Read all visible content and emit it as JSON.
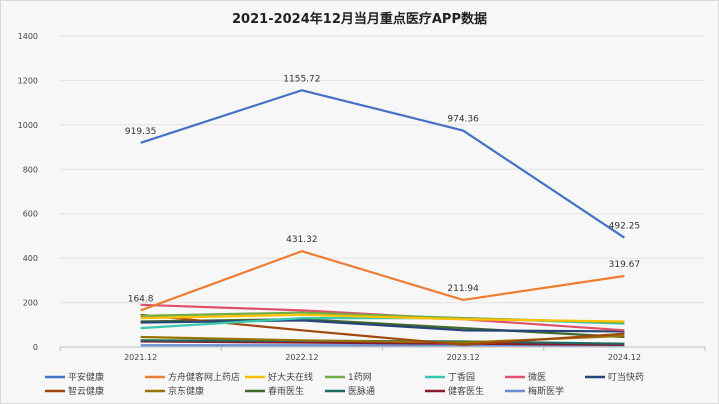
{
  "chart_data": {
    "type": "line",
    "title": "2021-2024年12月当月重点医疗APP数据",
    "xlabel": "",
    "ylabel": "",
    "categories": [
      "2021.12",
      "2022.12",
      "2023.12",
      "2024.12"
    ],
    "ylim": [
      0,
      1400
    ],
    "yticks": [
      0,
      200,
      400,
      600,
      800,
      1000,
      1200,
      1400
    ],
    "grid": true,
    "legend_position": "bottom",
    "series": [
      {
        "name": "平安健康",
        "color": "#4472C4",
        "values": [
          919.35,
          1155.72,
          974.36,
          492.25
        ],
        "labels": [
          "919.35",
          "1155.72",
          "974.36",
          "492.25"
        ]
      },
      {
        "name": "方舟健客网上药店",
        "color": "#ED7D31",
        "values": [
          164.8,
          431.32,
          211.94,
          319.67
        ],
        "labels": [
          "164.8",
          "431.32",
          "211.94",
          "319.67"
        ]
      },
      {
        "name": "好大夫在线",
        "color": "#FFC000",
        "values": [
          130,
          145,
          125,
          115
        ]
      },
      {
        "name": "1药网",
        "color": "#70AD47",
        "values": [
          140,
          155,
          130,
          110
        ]
      },
      {
        "name": "丁香园",
        "color": "#3CC7B0",
        "values": [
          85,
          130,
          130,
          105
        ]
      },
      {
        "name": "微医",
        "color": "#E0506A",
        "values": [
          190,
          165,
          125,
          75
        ]
      },
      {
        "name": "叮当快药",
        "color": "#264478",
        "values": [
          110,
          120,
          75,
          70
        ]
      },
      {
        "name": "智云健康",
        "color": "#9E480E",
        "values": [
          145,
          75,
          10,
          60
        ]
      },
      {
        "name": "京东健康",
        "color": "#997300",
        "values": [
          45,
          30,
          20,
          50
        ]
      },
      {
        "name": "春雨医生",
        "color": "#43682B",
        "values": [
          115,
          125,
          85,
          45
        ]
      },
      {
        "name": "医脉通",
        "color": "#1E6B63",
        "values": [
          30,
          28,
          25,
          15
        ]
      },
      {
        "name": "健客医生",
        "color": "#8B1A2A",
        "values": [
          25,
          20,
          15,
          10
        ]
      },
      {
        "name": "梅斯医学",
        "color": "#698ED0",
        "values": [
          8,
          8,
          8,
          8
        ]
      }
    ]
  }
}
